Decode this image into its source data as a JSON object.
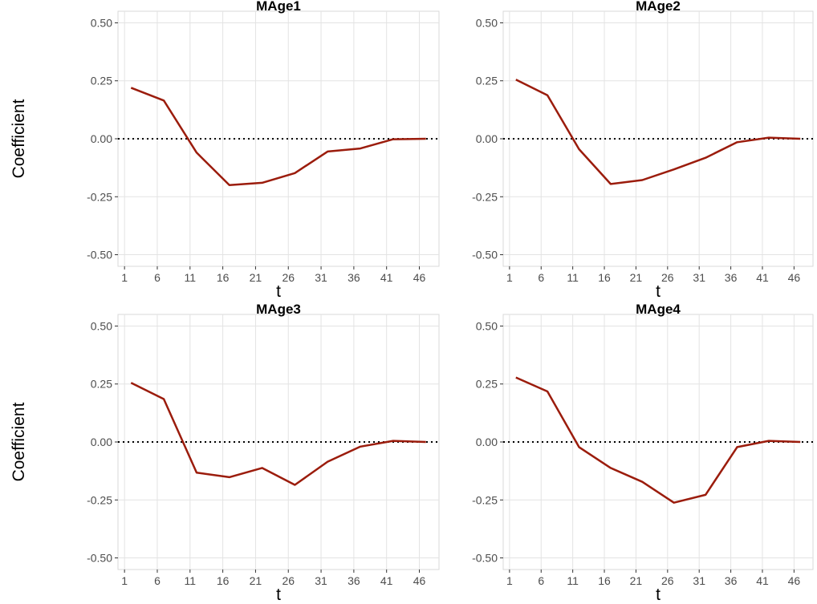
{
  "chart_data": [
    {
      "type": "line",
      "title": "MAge1",
      "xlabel": "t",
      "ylabel": "Coefficient",
      "x_ticks": [
        1,
        6,
        11,
        16,
        21,
        26,
        31,
        36,
        41,
        46
      ],
      "y_ticks": [
        -0.5,
        -0.25,
        0,
        0.25,
        0.5
      ],
      "y_tick_labels": [
        "-0.50",
        "-0.25",
        "0.00",
        "0.25",
        "0.50"
      ],
      "xlim": [
        0,
        49
      ],
      "ylim": [
        -0.55,
        0.55
      ],
      "reference_line": 0,
      "grid": true,
      "line_color": "#9b1c0c",
      "series": [
        {
          "x": [
            2,
            7,
            12,
            17,
            22,
            27,
            32,
            37,
            42,
            47
          ],
          "y": [
            0.22,
            0.165,
            -0.06,
            -0.2,
            -0.19,
            -0.148,
            -0.055,
            -0.042,
            -0.002,
            0.0
          ]
        }
      ]
    },
    {
      "type": "line",
      "title": "MAge2",
      "xlabel": "t",
      "ylabel": "",
      "x_ticks": [
        1,
        6,
        11,
        16,
        21,
        26,
        31,
        36,
        41,
        46
      ],
      "y_ticks": [
        -0.5,
        -0.25,
        0,
        0.25,
        0.5
      ],
      "y_tick_labels": [
        "-0.50",
        "-0.25",
        "0.00",
        "0.25",
        "0.50"
      ],
      "xlim": [
        0,
        49
      ],
      "ylim": [
        -0.55,
        0.55
      ],
      "reference_line": 0,
      "grid": true,
      "line_color": "#9b1c0c",
      "series": [
        {
          "x": [
            2,
            7,
            12,
            17,
            22,
            27,
            32,
            37,
            42,
            47
          ],
          "y": [
            0.255,
            0.188,
            -0.045,
            -0.195,
            -0.178,
            -0.132,
            -0.082,
            -0.015,
            0.005,
            0.0
          ]
        }
      ]
    },
    {
      "type": "line",
      "title": "MAge3",
      "xlabel": "t",
      "ylabel": "Coefficient",
      "x_ticks": [
        1,
        6,
        11,
        16,
        21,
        26,
        31,
        36,
        41,
        46
      ],
      "y_ticks": [
        -0.5,
        -0.25,
        0,
        0.25,
        0.5
      ],
      "y_tick_labels": [
        "-0.50",
        "-0.25",
        "0.00",
        "0.25",
        "0.50"
      ],
      "xlim": [
        0,
        49
      ],
      "ylim": [
        -0.55,
        0.55
      ],
      "reference_line": 0,
      "grid": true,
      "line_color": "#9b1c0c",
      "series": [
        {
          "x": [
            2,
            7,
            12,
            17,
            22,
            27,
            32,
            37,
            42,
            47
          ],
          "y": [
            0.255,
            0.185,
            -0.132,
            -0.152,
            -0.112,
            -0.185,
            -0.085,
            -0.02,
            0.005,
            0.0
          ]
        }
      ]
    },
    {
      "type": "line",
      "title": "MAge4",
      "xlabel": "t",
      "ylabel": "",
      "x_ticks": [
        1,
        6,
        11,
        16,
        21,
        26,
        31,
        36,
        41,
        46
      ],
      "y_ticks": [
        -0.5,
        -0.25,
        0,
        0.25,
        0.5
      ],
      "y_tick_labels": [
        "-0.50",
        "-0.25",
        "0.00",
        "0.25",
        "0.50"
      ],
      "xlim": [
        0,
        49
      ],
      "ylim": [
        -0.55,
        0.55
      ],
      "reference_line": 0,
      "grid": true,
      "line_color": "#9b1c0c",
      "series": [
        {
          "x": [
            2,
            7,
            12,
            17,
            22,
            27,
            32,
            37,
            42,
            47
          ],
          "y": [
            0.278,
            0.218,
            -0.022,
            -0.112,
            -0.172,
            -0.262,
            -0.228,
            -0.022,
            0.005,
            0.0
          ]
        }
      ]
    }
  ]
}
